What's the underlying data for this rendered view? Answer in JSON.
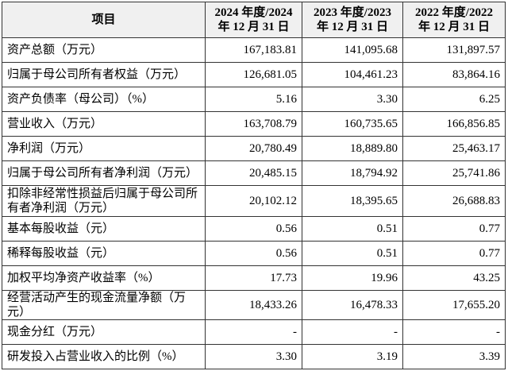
{
  "table": {
    "headers": [
      "项目",
      "2024 年度/2024 年 12 月 31 日",
      "2023 年度/2023 年 12 月 31 日",
      "2022 年度/2022 年 12 月 31 日"
    ],
    "rows": [
      [
        "资产总额（万元）",
        "167,183.81",
        "141,095.68",
        "131,897.57"
      ],
      [
        "归属于母公司所有者权益（万元）",
        "126,681.05",
        "104,461.23",
        "83,864.16"
      ],
      [
        "资产负债率（母公司）（%）",
        "5.16",
        "3.30",
        "6.25"
      ],
      [
        "营业收入（万元）",
        "163,708.79",
        "160,735.65",
        "166,856.85"
      ],
      [
        "净利润（万元）",
        "20,780.49",
        "18,889.80",
        "25,463.17"
      ],
      [
        "归属于母公司所有者净利润（万元）",
        "20,485.15",
        "18,794.92",
        "25,741.86"
      ],
      [
        "扣除非经常性损益后归属于母公司所有者净利润（万元）",
        "20,102.12",
        "18,395.65",
        "26,688.83"
      ],
      [
        "基本每股收益（元）",
        "0.56",
        "0.51",
        "0.77"
      ],
      [
        "稀释每股收益（元）",
        "0.56",
        "0.51",
        "0.77"
      ],
      [
        "加权平均净资产收益率（%）",
        "17.73",
        "19.96",
        "43.25"
      ],
      [
        "经营活动产生的现金流量净额（万元）",
        "18,433.26",
        "16,478.33",
        "17,655.20"
      ],
      [
        "现金分红（万元）",
        "-",
        "-",
        "-"
      ],
      [
        "研发投入占营业收入的比例（%）",
        "3.30",
        "3.19",
        "3.39"
      ]
    ]
  }
}
